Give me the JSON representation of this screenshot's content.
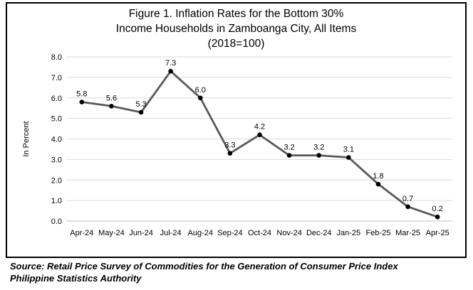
{
  "chart_data": {
    "type": "line",
    "title_lines": [
      "Figure 1. Inflation Rates for the Bottom 30%",
      "Income Households in Zamboanga City, All Items",
      "(2018=100)"
    ],
    "xlabel": "",
    "ylabel": "In Percent",
    "categories": [
      "Apr-24",
      "May-24",
      "Jun-24",
      "Jul-24",
      "Aug-24",
      "Sep-24",
      "Oct-24",
      "Nov-24",
      "Dec-24",
      "Jan-25",
      "Feb-25",
      "Mar-25",
      "Apr-25"
    ],
    "values": [
      5.8,
      5.6,
      5.3,
      7.3,
      6.0,
      3.3,
      4.2,
      3.2,
      3.2,
      3.1,
      1.8,
      0.7,
      0.2
    ],
    "data_labels": [
      "5.8",
      "5.6",
      "5.3",
      "7.3",
      "6.0",
      "3.3",
      "4.2",
      "3.2",
      "3.2",
      "3.1",
      "1.8",
      "0.7",
      "0.2"
    ],
    "ylim": [
      0,
      8
    ],
    "yticks": [
      "0.0",
      "1.0",
      "2.0",
      "3.0",
      "4.0",
      "5.0",
      "6.0",
      "7.0",
      "8.0"
    ],
    "grid": true,
    "line_color": "#595959",
    "marker_color": "#000000",
    "grid_color": "#d9d9d9"
  },
  "source": {
    "line1": "Source: Retail Price Survey of Commodities for the Generation of Consumer Price Index",
    "line2": "Philippine Statistics Authority"
  }
}
